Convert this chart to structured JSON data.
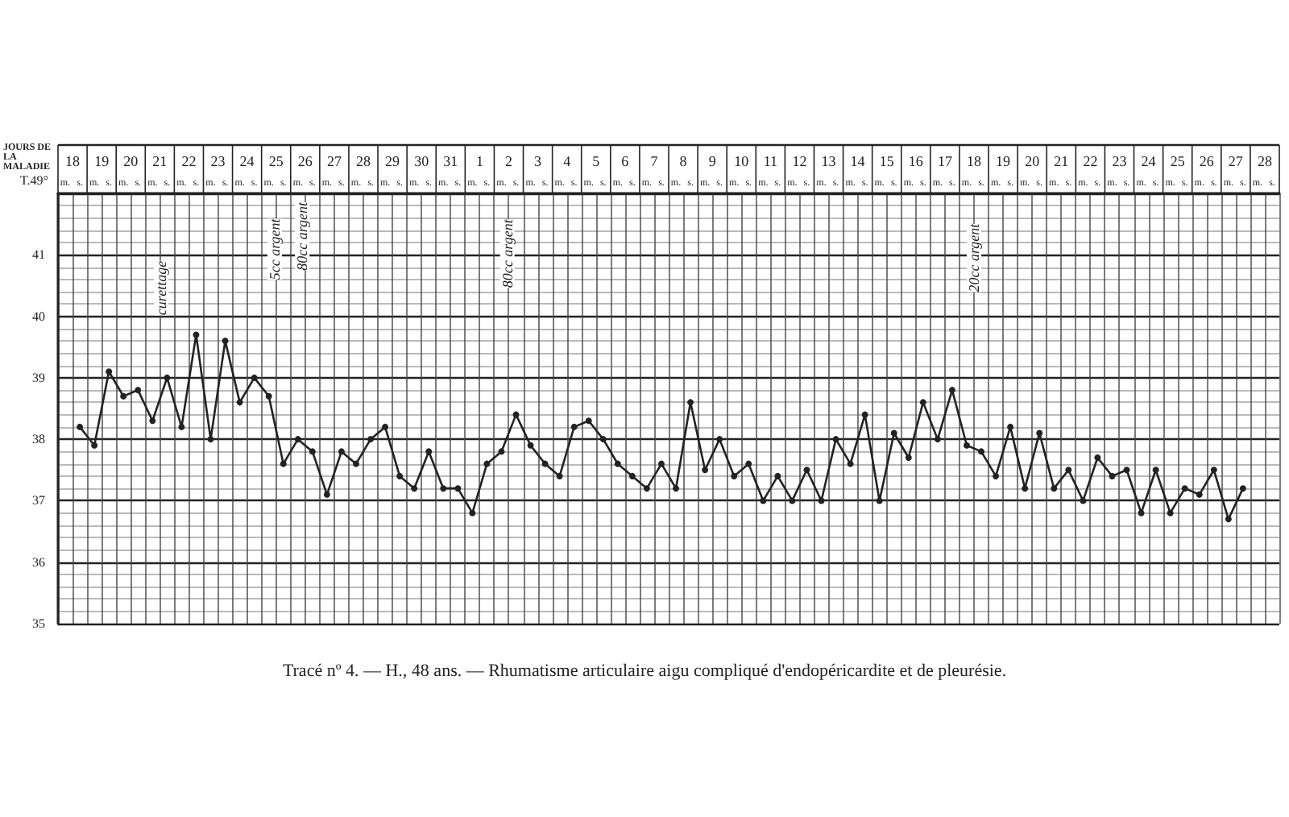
{
  "chart_data": {
    "type": "line",
    "title": "Tracé nº 4. — H., 48 ans. — Rhumatisme articulaire aigu compliqué d'endopéricardite et de pleurésie.",
    "xlabel": "JOURS DE LA MALADIE",
    "ylabel": "T.49°",
    "categories": [
      "m.",
      "s.",
      "m.",
      "s.",
      "m.",
      "s.",
      "m.",
      "s.",
      "m.",
      "s.",
      "m.",
      "s.",
      "m.",
      "s.",
      "m.",
      "s.",
      "m.",
      "s.",
      "m.",
      "s.",
      "m.",
      "s.",
      "m.",
      "s.",
      "m.",
      "s.",
      "m.",
      "s.",
      "m.",
      "s.",
      "m.",
      "s.",
      "m.",
      "s.",
      "m.",
      "s.",
      "m.",
      "s.",
      "m.",
      "s.",
      "m.",
      "s.",
      "m.",
      "s.",
      "m.",
      "s.",
      "m.",
      "s.",
      "m.",
      "s.",
      "m.",
      "s.",
      "m.",
      "s.",
      "m.",
      "s.",
      "m.",
      "s.",
      "m.",
      "s.",
      "m.",
      "s.",
      "m.",
      "s.",
      "m.",
      "s.",
      "m.",
      "s.",
      "m.",
      "s.",
      "m.",
      "s.",
      "m.",
      "s.",
      "m.",
      "s.",
      "m.",
      "s.",
      "m.",
      "s.",
      "m.",
      "s.",
      "m.",
      "s."
    ],
    "series": [
      {
        "color": "#222222",
        "values": [
          null,
          38.2,
          37.9,
          39.1,
          38.7,
          38.8,
          38.3,
          39.0,
          38.2,
          39.7,
          38.0,
          39.6,
          38.6,
          39.0,
          38.7,
          37.6,
          38.0,
          37.8,
          37.1,
          37.8,
          37.6,
          38.0,
          38.2,
          37.4,
          37.2,
          37.8,
          37.2,
          37.2,
          36.8,
          37.6,
          37.8,
          38.4,
          37.9,
          37.6,
          37.4,
          38.2,
          38.3,
          38.0,
          37.6,
          37.4,
          37.2,
          37.6,
          37.2,
          38.6,
          37.5,
          38.0,
          37.4,
          37.6,
          37.0,
          37.4,
          37.0,
          37.5,
          37.0,
          38.0,
          37.6,
          38.4,
          37.0,
          38.1,
          37.7,
          38.6,
          38.0,
          38.8,
          37.9,
          37.8,
          37.4,
          38.2,
          37.2,
          38.1,
          37.2,
          37.5,
          37.0,
          37.7,
          37.4,
          37.5,
          36.8,
          37.5,
          36.8,
          37.2,
          37.1,
          37.5,
          36.7,
          37.2,
          null,
          null
        ]
      }
    ],
    "ylim": [
      35,
      42
    ],
    "yticks": [
      35,
      36,
      37,
      38,
      39,
      40,
      41
    ],
    "annotations": [
      "curettage",
      "5cc argent",
      "80cc argent",
      "80cc argent",
      "20cc argent",
      "18",
      "19",
      "20",
      "21",
      "22",
      "23",
      "24",
      "25",
      "26",
      "27",
      "28",
      "29",
      "30",
      "31",
      "1",
      "2",
      "3",
      "4",
      "5",
      "6",
      "7",
      "8",
      "9",
      "10",
      "11",
      "12",
      "13",
      "14",
      "15",
      "16",
      "17",
      "18",
      "19",
      "20",
      "21",
      "22",
      "23",
      "24",
      "25",
      "26",
      "27",
      "28"
    ],
    "grid": true,
    "marker": "circle",
    "line_style": "solid"
  }
}
